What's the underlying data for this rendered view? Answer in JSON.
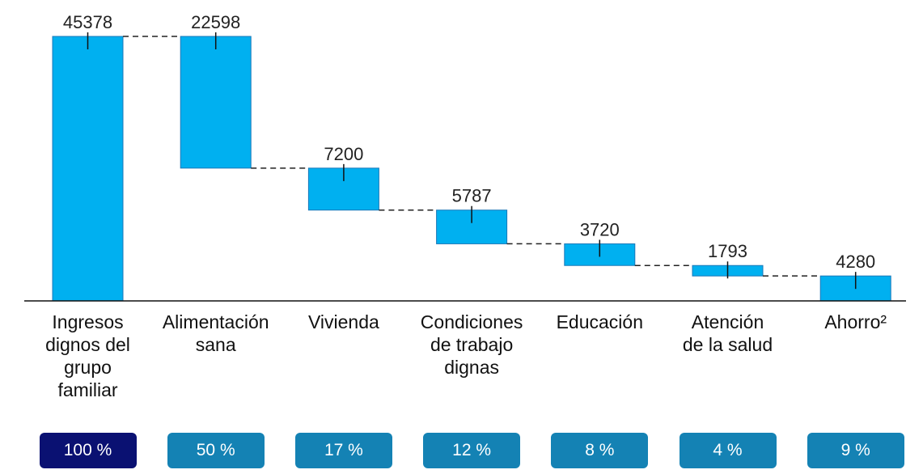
{
  "chart_data": {
    "type": "waterfall",
    "categories": [
      "Ingresos\ndignos del\ngrupo\nfamiliar",
      "Alimentación\nsana",
      "Vivienda",
      "Condiciones\nde trabajo\ndignas",
      "Educación",
      "Atención\nde la salud",
      "Ahorro²"
    ],
    "values": [
      45378,
      22598,
      7200,
      5787,
      3720,
      1793,
      4280
    ],
    "color": "#00b0f0",
    "shares": [
      100,
      50,
      17,
      12,
      8,
      4,
      9
    ],
    "share_labels": [
      "100 %",
      "50 %",
      "17 %",
      "12 %",
      "8 %",
      "4 %",
      "9 %"
    ],
    "share_colors": [
      "#0a1172",
      "#1482b4",
      "#1482b4",
      "#1482b4",
      "#1482b4",
      "#1482b4",
      "#1482b4"
    ]
  }
}
